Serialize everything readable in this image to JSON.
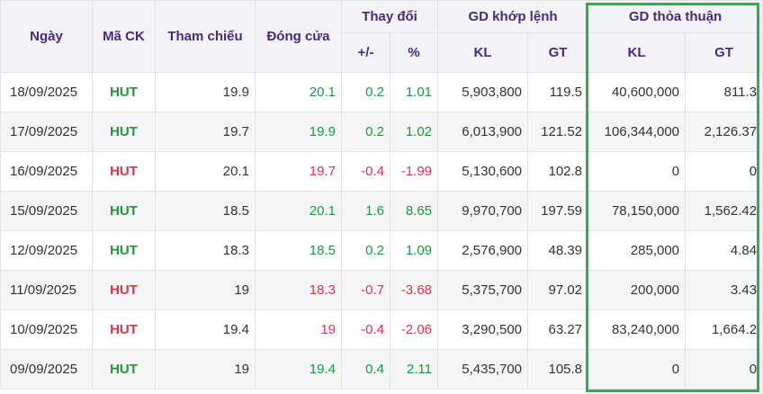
{
  "headers": {
    "date": "Ngày",
    "code": "Mã CK",
    "ref": "Tham chiếu",
    "close": "Đóng cửa",
    "change": "Thay đổi",
    "change_abs": "+/-",
    "change_pct": "%",
    "matched": "GD khớp lệnh",
    "matched_kl": "KL",
    "matched_gt": "GT",
    "deal": "GD thỏa thuận",
    "deal_kl": "KL",
    "deal_gt": "GT"
  },
  "colors": {
    "up": "#1b9a3c",
    "down": "#e0334a",
    "header_text": "#4b2a7b",
    "highlight": "#2db04a"
  },
  "rows": [
    {
      "date": "18/09/2025",
      "code": "HUT",
      "dir": "up",
      "ref": "19.9",
      "close": "20.1",
      "chg": "0.2",
      "pct": "1.01",
      "kl": "5,903,800",
      "gt": "119.5",
      "tt_kl": "40,600,000",
      "tt_gt": "811.3"
    },
    {
      "date": "17/09/2025",
      "code": "HUT",
      "dir": "up",
      "ref": "19.7",
      "close": "19.9",
      "chg": "0.2",
      "pct": "1.02",
      "kl": "6,013,900",
      "gt": "121.52",
      "tt_kl": "106,344,000",
      "tt_gt": "2,126.37"
    },
    {
      "date": "16/09/2025",
      "code": "HUT",
      "dir": "down",
      "ref": "20.1",
      "close": "19.7",
      "chg": "-0.4",
      "pct": "-1.99",
      "kl": "5,130,600",
      "gt": "102.8",
      "tt_kl": "0",
      "tt_gt": "0"
    },
    {
      "date": "15/09/2025",
      "code": "HUT",
      "dir": "up",
      "ref": "18.5",
      "close": "20.1",
      "chg": "1.6",
      "pct": "8.65",
      "kl": "9,970,700",
      "gt": "197.59",
      "tt_kl": "78,150,000",
      "tt_gt": "1,562.42"
    },
    {
      "date": "12/09/2025",
      "code": "HUT",
      "dir": "up",
      "ref": "18.3",
      "close": "18.5",
      "chg": "0.2",
      "pct": "1.09",
      "kl": "2,576,900",
      "gt": "48.39",
      "tt_kl": "285,000",
      "tt_gt": "4.84"
    },
    {
      "date": "11/09/2025",
      "code": "HUT",
      "dir": "down",
      "ref": "19",
      "close": "18.3",
      "chg": "-0.7",
      "pct": "-3.68",
      "kl": "5,375,700",
      "gt": "97.02",
      "tt_kl": "200,000",
      "tt_gt": "3.43"
    },
    {
      "date": "10/09/2025",
      "code": "HUT",
      "dir": "down",
      "ref": "19.4",
      "close": "19",
      "chg": "-0.4",
      "pct": "-2.06",
      "kl": "3,290,500",
      "gt": "63.27",
      "tt_kl": "83,240,000",
      "tt_gt": "1,664.2"
    },
    {
      "date": "09/09/2025",
      "code": "HUT",
      "dir": "up",
      "ref": "19",
      "close": "19.4",
      "chg": "0.4",
      "pct": "2.11",
      "kl": "5,435,700",
      "gt": "105.8",
      "tt_kl": "0",
      "tt_gt": "0"
    }
  ]
}
